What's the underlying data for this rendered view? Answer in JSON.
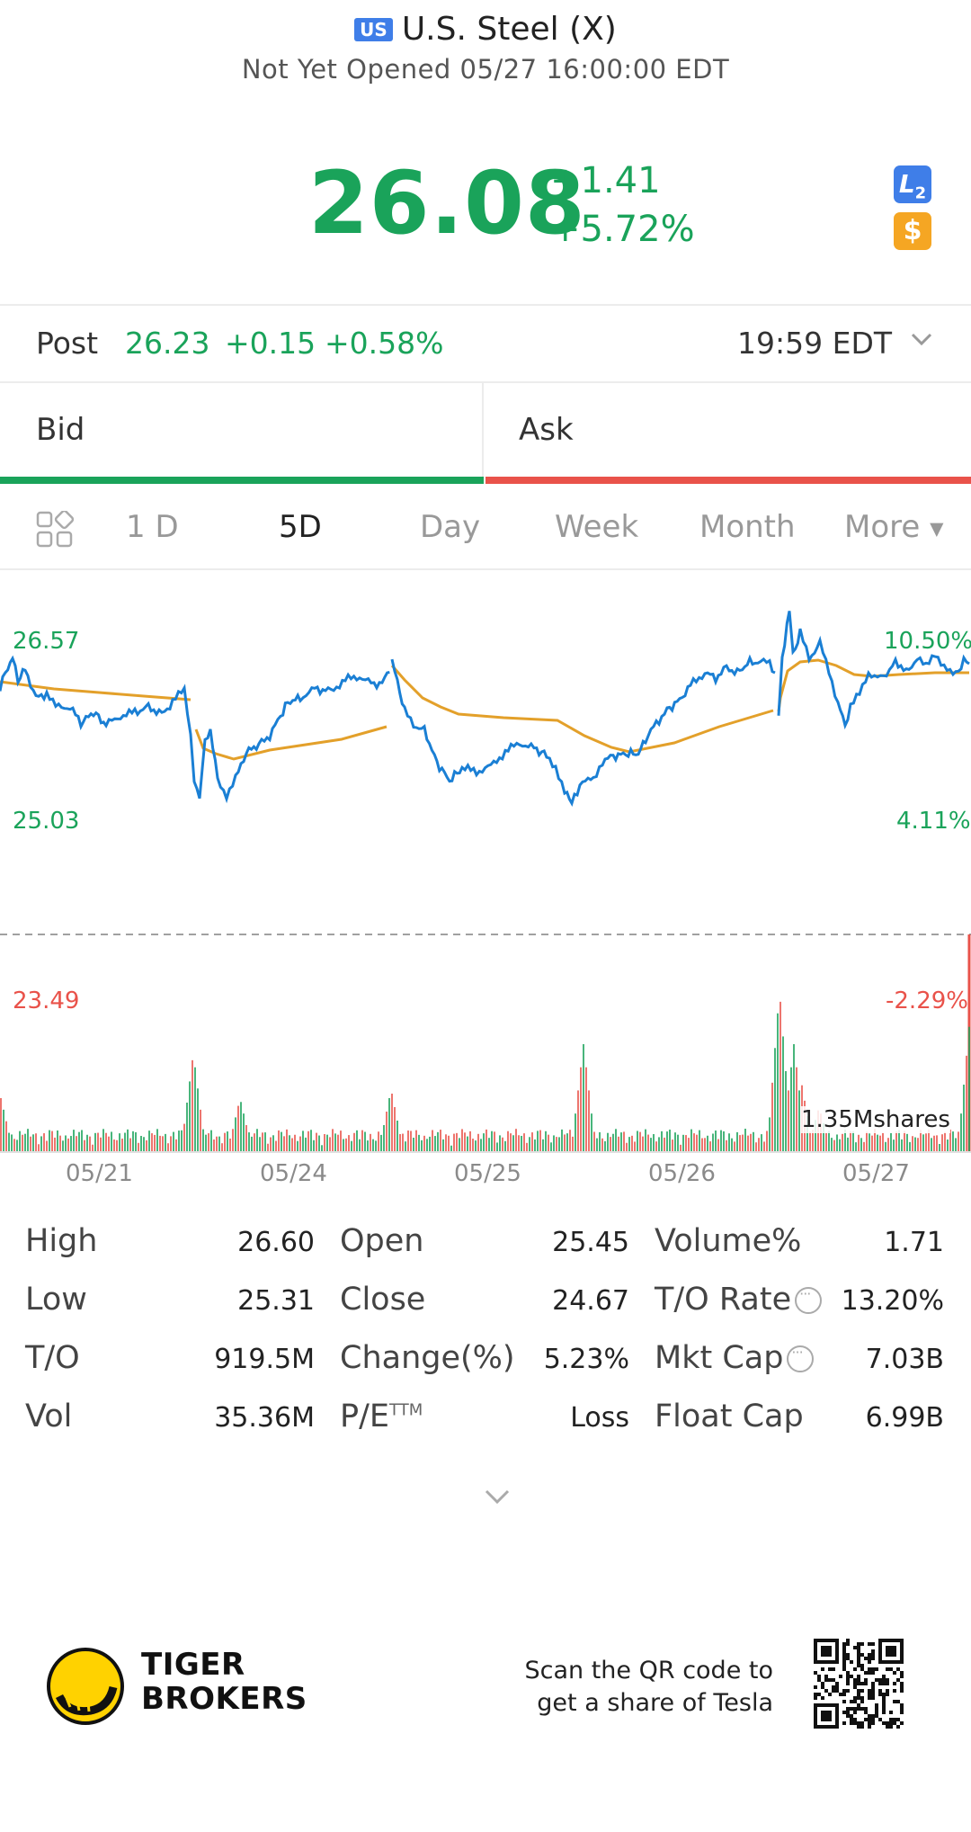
{
  "header": {
    "market_badge": "US",
    "title": "U.S. Steel (X)",
    "status": "Not Yet Opened 05/27 16:00:00 EDT"
  },
  "quote": {
    "price": "26.08",
    "change": "+1.41",
    "change_pct": "+5.72%",
    "l2_label": "L",
    "l2_sub": "2",
    "dollar_label": "$"
  },
  "post": {
    "label": "Post",
    "price": "26.23",
    "change": "+0.15",
    "change_pct": "+0.58%",
    "time": "19:59 EDT"
  },
  "bidask": {
    "bid_label": "Bid",
    "ask_label": "Ask"
  },
  "tabs": {
    "items": [
      "1 D",
      "5D",
      "Day",
      "Week",
      "Month",
      "More"
    ],
    "active": "5D"
  },
  "chart": {
    "price_high": "26.57",
    "price_mid": "25.03",
    "price_low": "23.49",
    "pct_high": "10.50%",
    "pct_mid": "4.11%",
    "pct_low": "-2.29%",
    "volume_label": "1.35Mshares",
    "dates": [
      "05/21",
      "05/24",
      "05/25",
      "05/26",
      "05/27"
    ],
    "colors": {
      "price_line": "#1a7fd4",
      "avg_line": "#e3a02a",
      "up": "#1aa35a",
      "down": "#e9524a",
      "prev_close": "#a0a0a0"
    }
  },
  "stats": {
    "col1": [
      {
        "label": "High",
        "value": "26.60"
      },
      {
        "label": "Low",
        "value": "25.31"
      },
      {
        "label": "T/O",
        "value": "919.5M"
      },
      {
        "label": "Vol",
        "value": "35.36M"
      }
    ],
    "col2": [
      {
        "label": "Open",
        "value": "25.45"
      },
      {
        "label": "Close",
        "value": "24.67"
      },
      {
        "label": "Change(%)",
        "value": "5.23%"
      },
      {
        "label": "P/E",
        "sup": "TTM",
        "value": "Loss"
      }
    ],
    "col3": [
      {
        "label": "Volume%",
        "value": "1.71"
      },
      {
        "label": "T/O Rate",
        "value": "13.20%"
      },
      {
        "label": "Mkt Cap",
        "value": "7.03B"
      },
      {
        "label": "Float Cap",
        "value": "6.99B"
      }
    ]
  },
  "footer": {
    "brand_line1": "TIGER",
    "brand_line2": "BROKERS",
    "scan_line1": "Scan the QR code to",
    "scan_line2": "get a share of Tesla"
  }
}
